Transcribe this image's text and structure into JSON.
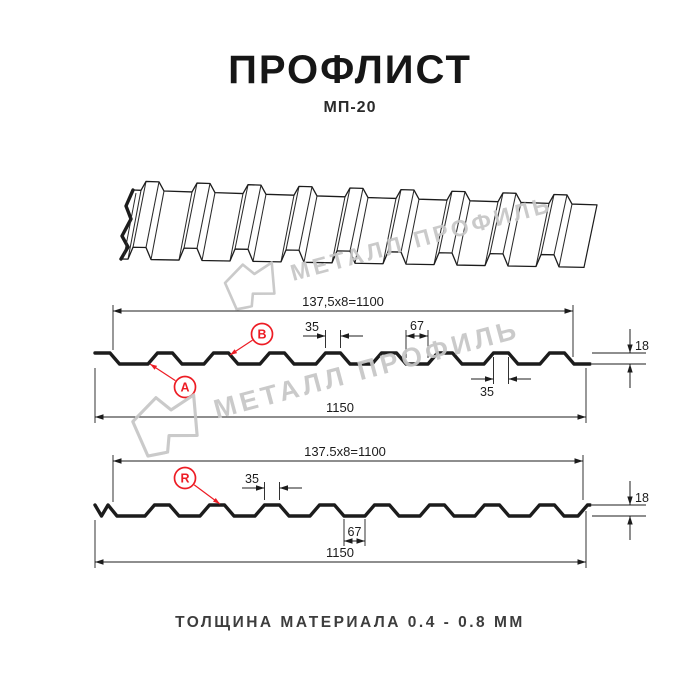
{
  "header": {
    "title": "ПРОФЛИСТ",
    "subtitle": "МП-20"
  },
  "footer": {
    "text": "ТОЛЩИНА МАТЕРИАЛА 0.4 - 0.8 ММ"
  },
  "watermark": {
    "text": "МЕТАЛЛ ПРОФИЛЬ",
    "color": "#c7c7c7"
  },
  "colors": {
    "ink": "#1c1c1c",
    "red": "#ed1c24"
  },
  "profile": {
    "name": "МП-20",
    "wave_height_mm": 18,
    "total_width_mm": 1150,
    "useful_width_mm": 1100,
    "pitch_mm": 137.5,
    "rib_top_mm": 35,
    "valley_mm": 67
  },
  "sections": {
    "a": {
      "top_dim": "137,5x8=1100",
      "rib_top": "35",
      "valley": "67",
      "rib_bottom": "35",
      "height": "18",
      "total": "1150",
      "point_a": "A",
      "point_b": "B"
    },
    "r": {
      "top_dim": "137.5x8=1100",
      "rib_top": "35",
      "valley": "67",
      "height": "18",
      "total": "1150",
      "point_r": "R"
    }
  }
}
